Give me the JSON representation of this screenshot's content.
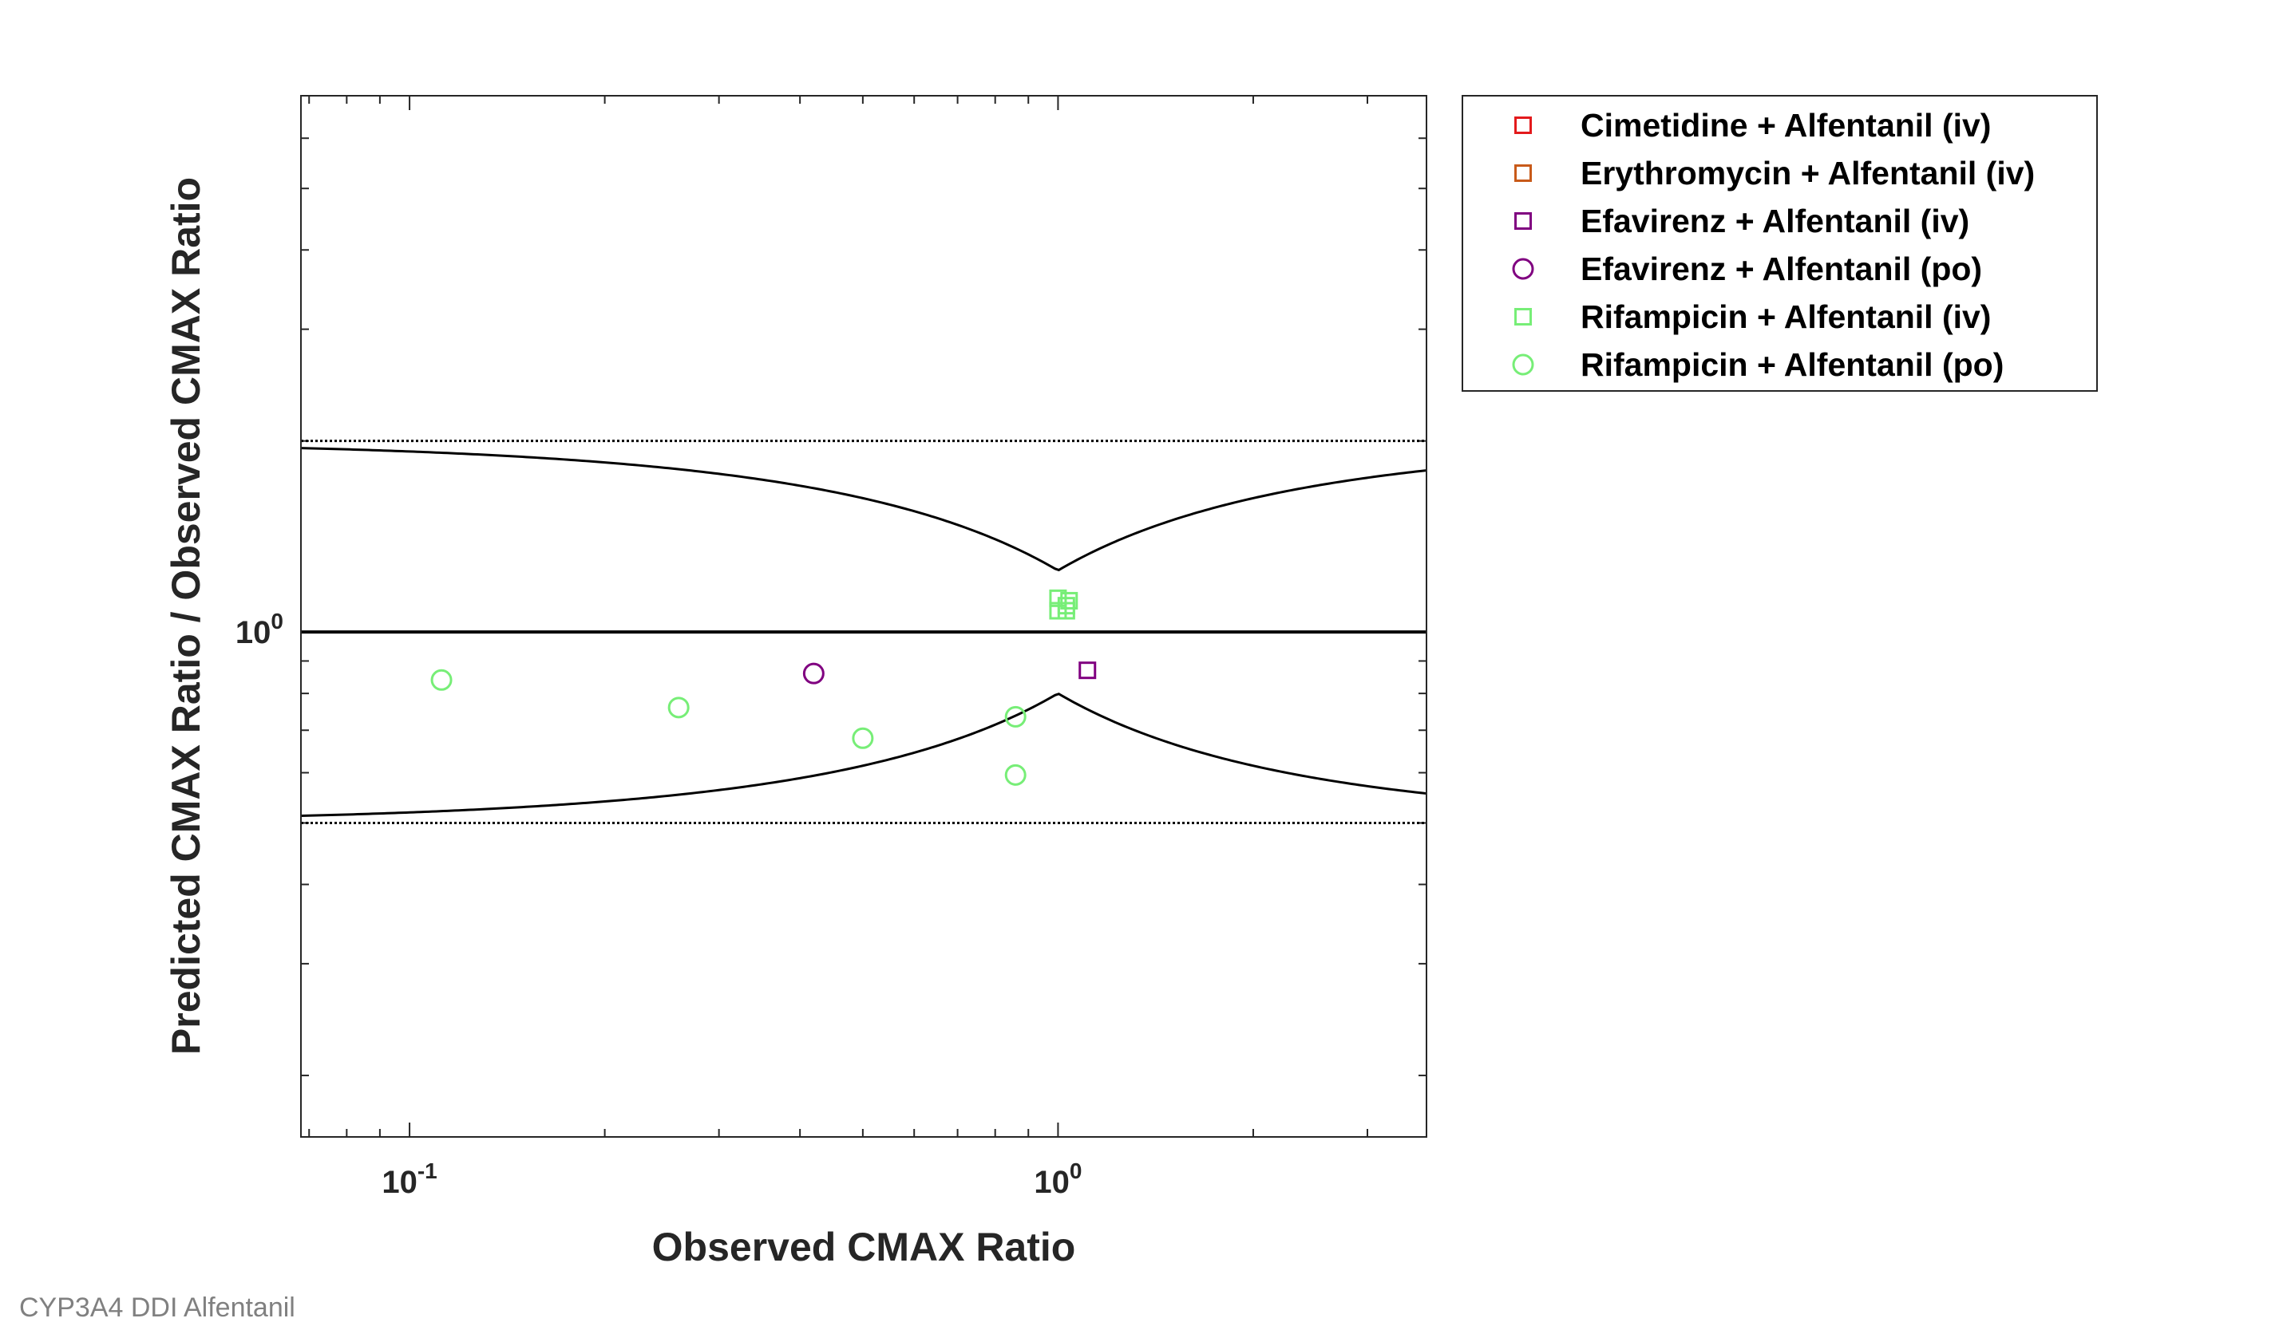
{
  "caption": "CYP3A4 DDI Alfentanil",
  "chart_data": {
    "type": "scatter",
    "title": "",
    "xlabel": "Observed CMAX Ratio",
    "ylabel": "Predicted CMAX Ratio / Observed CMAX Ratio",
    "x_scale": "log",
    "y_scale": "log",
    "xlim": [
      0.068,
      3.7
    ],
    "ylim": [
      0.16,
      7
    ],
    "x_tick_labels": [
      {
        "value": 0.1,
        "base": "10",
        "exp": "-1"
      },
      {
        "value": 1,
        "base": "10",
        "exp": "0"
      }
    ],
    "y_tick_labels": [
      {
        "value": 1,
        "base": "10",
        "exp": "0"
      }
    ],
    "grid": false,
    "legend_position": "outside-top-right",
    "reference_lines": {
      "unity": 1,
      "two_fold_lower": 0.5,
      "two_fold_upper": 2,
      "guest_limit_delta": 1.25
    },
    "series": [
      {
        "name": "Cimetidine + Alfentanil (iv)",
        "marker": "square",
        "color": "#e31a1c",
        "points": []
      },
      {
        "name": "Erythromycin + Alfentanil (iv)",
        "marker": "square",
        "color": "#c85a19",
        "points": []
      },
      {
        "name": "Efavirenz + Alfentanil (iv)",
        "marker": "square",
        "color": "#800080",
        "points": [
          {
            "x": 1.11,
            "y": 0.87
          }
        ]
      },
      {
        "name": "Efavirenz + Alfentanil (po)",
        "marker": "circle",
        "color": "#800080",
        "points": [
          {
            "x": 0.42,
            "y": 0.86
          }
        ]
      },
      {
        "name": "Rifampicin + Alfentanil (iv)",
        "marker": "square",
        "color": "#77ee77",
        "points": [
          {
            "x": 1.0,
            "y": 1.13
          },
          {
            "x": 1.04,
            "y": 1.12
          },
          {
            "x": 1.03,
            "y": 1.1
          },
          {
            "x": 1.0,
            "y": 1.08
          },
          {
            "x": 1.03,
            "y": 1.08
          }
        ]
      },
      {
        "name": "Rifampicin + Alfentanil (po)",
        "marker": "circle",
        "color": "#77ee77",
        "points": [
          {
            "x": 0.112,
            "y": 0.84
          },
          {
            "x": 0.26,
            "y": 0.76
          },
          {
            "x": 0.5,
            "y": 0.68
          },
          {
            "x": 0.86,
            "y": 0.735
          },
          {
            "x": 0.86,
            "y": 0.595
          }
        ]
      }
    ]
  }
}
